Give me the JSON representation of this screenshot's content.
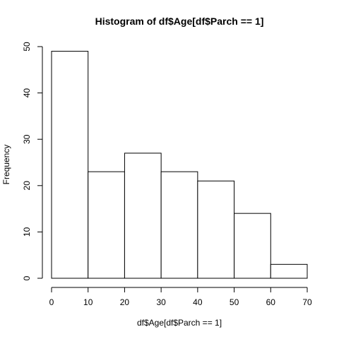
{
  "chart_data": {
    "type": "bar",
    "title": "Histogram of df$Age[df$Parch == 1]",
    "xlabel": "df$Age[df$Parch == 1]",
    "ylabel": "Frequency",
    "bins": [
      {
        "from": 0,
        "to": 10,
        "count": 49
      },
      {
        "from": 10,
        "to": 20,
        "count": 23
      },
      {
        "from": 20,
        "to": 30,
        "count": 27
      },
      {
        "from": 30,
        "to": 40,
        "count": 23
      },
      {
        "from": 40,
        "to": 50,
        "count": 21
      },
      {
        "from": 50,
        "to": 60,
        "count": 14
      },
      {
        "from": 60,
        "to": 70,
        "count": 3
      }
    ],
    "xlim": [
      0,
      70
    ],
    "ylim": [
      0,
      50
    ],
    "x_ticks": [
      "0",
      "10",
      "20",
      "30",
      "40",
      "50",
      "60",
      "70"
    ],
    "y_ticks": [
      "0",
      "10",
      "20",
      "30",
      "40",
      "50"
    ],
    "grid": false,
    "legend": "none",
    "bar_fill": "#ffffff",
    "bar_stroke": "#000000"
  }
}
